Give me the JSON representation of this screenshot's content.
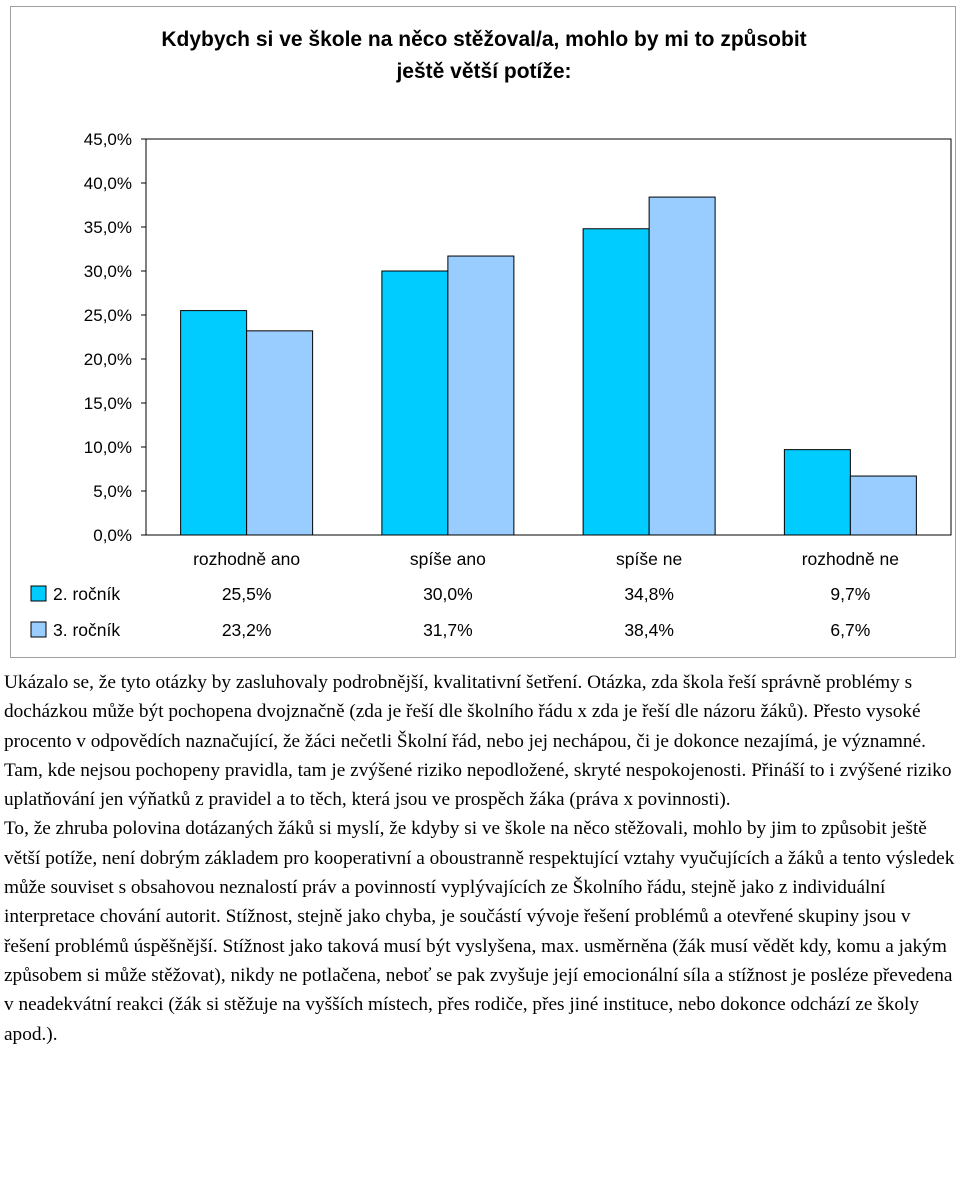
{
  "chart_data": {
    "type": "bar",
    "title_line1": "Kdybych si ve škole na něco stěžoval/a, mohlo by mi to způsobit",
    "title_line2": "ještě větší potíže:",
    "categories": [
      "rozhodně ano",
      "spíše ano",
      "spíše ne",
      "rozhodně ne"
    ],
    "series": [
      {
        "name": "2. ročník",
        "values": [
          25.5,
          30.0,
          34.8,
          9.7
        ],
        "labels": [
          "25,5%",
          "30,0%",
          "34,8%",
          "9,7%"
        ],
        "color": "#00ccff"
      },
      {
        "name": "3. ročník",
        "values": [
          23.2,
          31.7,
          38.4,
          6.7
        ],
        "labels": [
          "23,2%",
          "31,7%",
          "38,4%",
          "6,7%"
        ],
        "color": "#99ccff"
      }
    ],
    "ylim": [
      0,
      45
    ],
    "yticks": [
      0,
      5,
      10,
      15,
      20,
      25,
      30,
      35,
      40,
      45
    ],
    "ytick_labels": [
      "0,0%",
      "5,0%",
      "10,0%",
      "15,0%",
      "20,0%",
      "25,0%",
      "30,0%",
      "35,0%",
      "40,0%",
      "45,0%"
    ],
    "grid": false,
    "legend": "data-table-below"
  },
  "text": {
    "paragraph1": "Ukázalo se, že tyto otázky by zasluhovaly podrobnější, kvalitativní šetření. Otázka, zda škola řeší správně problémy s docházkou může být pochopena dvojznačně (zda je řeší dle školního řádu x zda je řeší dle názoru žáků). Přesto vysoké procento v odpovědích naznačující, že žáci nečetli Školní řád, nebo jej nechápou, či je dokonce nezajímá, je významné. Tam, kde nejsou pochopeny pravidla, tam je zvýšené riziko nepodložené, skryté nespokojenosti. Přináší to i zvýšené riziko uplatňování jen výňatků z pravidel a to těch, která jsou ve prospěch žáka (práva x povinnosti).",
    "paragraph2": "To, že zhruba polovina dotázaných žáků si myslí, že kdyby si ve škole na něco stěžovali, mohlo by jim to způsobit ještě větší potíže, není dobrým základem pro kooperativní a oboustranně respektující vztahy vyučujících a žáků a tento výsledek může souviset s obsahovou neznalostí práv a povinností vyplývajících ze Školního řádu, stejně jako z individuální interpretace chování autorit. Stížnost, stejně jako chyba, je součástí vývoje řešení problémů a otevřené skupiny jsou v řešení problémů úspěšnější. Stížnost jako taková musí být vyslyšena, max. usměrněna (žák musí vědět kdy, komu a jakým způsobem si může stěžovat), nikdy ne potlačena, neboť se pak zvyšuje její emocionální síla a stížnost je posléze převedena v neadekvátní reakci (žák si stěžuje na vyšších místech, přes rodiče, přes jiné instituce, nebo dokonce odchází ze školy apod.)."
  }
}
